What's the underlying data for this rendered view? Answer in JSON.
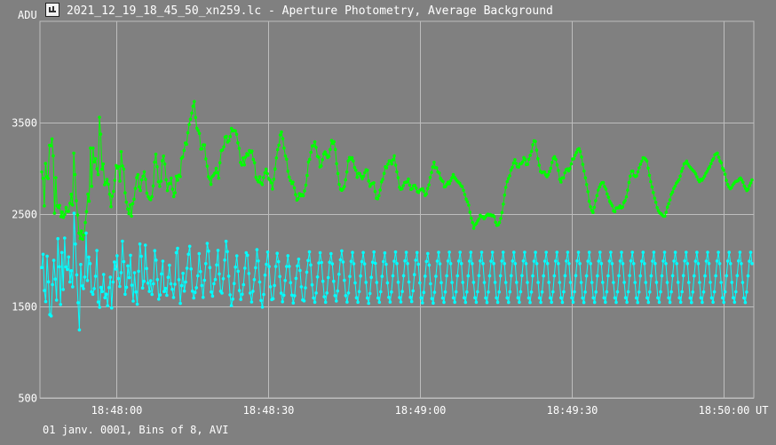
{
  "window": {
    "title": "2021_12_19_18_45_50_xn259.lc - Aperture Photometry, Average Background",
    "icon": "lightcurve-app-icon"
  },
  "footer": {
    "info": "01 janv. 0001, Bins of 8, AVI"
  },
  "colors": {
    "background": "#808080",
    "grid": "#bdbdbd",
    "series1": "#00ff00",
    "series2": "#00ffff",
    "text": "#ffffff"
  },
  "chart_data": {
    "type": "line",
    "title": "",
    "xlabel": "UT",
    "ylabel": "ADU",
    "x_ticks": [
      "18:48:00",
      "18:48:30",
      "18:49:00",
      "18:49:30",
      "18:50:00"
    ],
    "y_ticks": [
      500,
      1500,
      2500,
      3500
    ],
    "ylim": [
      500,
      4600
    ],
    "xlim": [
      "18:47:45",
      "18:50:06"
    ],
    "grid": true,
    "series": [
      {
        "color": "#00ff00",
        "values": [
          2961,
          2890,
          2591,
          3052,
          2909,
          2889,
          3250,
          3245,
          3320,
          3136,
          2510,
          2898,
          2592,
          2571,
          2595,
          2474,
          2525,
          2465,
          2497,
          2573,
          2531,
          2532,
          2619,
          2717,
          2600,
          3165,
          2931,
          2647,
          2491,
          2295,
          2237,
          2317,
          2227,
          2276,
          2409,
          2529,
          2718,
          2641,
          3220,
          2804,
          3219,
          3069,
          3104,
          2994,
          2931,
          3556,
          3371,
          2990,
          3048,
          2821,
          2845,
          2879,
          2825,
          2718,
          2582,
          2695,
          2749,
          2870,
          3030,
          3003,
          3019,
          2860,
          3180,
          3025,
          2992,
          2733,
          2631,
          2558,
          2506,
          2601,
          2479,
          2616,
          2663,
          2780,
          2899,
          2930,
          2798,
          2757,
          2874,
          2914,
          2962,
          2880,
          2730,
          2691,
          2669,
          2658,
          2691,
          2808,
          3066,
          3153,
          3017,
          2854,
          2802,
          2859,
          3081,
          3133,
          3046,
          2876,
          2757,
          2831,
          2833,
          2893,
          2773,
          2692,
          2733,
          2914,
          2870,
          2924,
          2910,
          3108,
          3123,
          3195,
          3275,
          3262,
          3387,
          3477,
          3534,
          3601,
          3676,
          3727,
          3553,
          3436,
          3411,
          3380,
          3209,
          3211,
          3255,
          3254,
          3102,
          3023,
          2909,
          2886,
          2825,
          2910,
          2924,
          2947,
          3000,
          2952,
          2892,
          3061,
          3192,
          3200,
          3233,
          3339,
          3347,
          3286,
          3299,
          3346,
          3435,
          3407,
          3412,
          3407,
          3370,
          3277,
          3217,
          3063,
          3035,
          3112,
          3037,
          3122,
          3158,
          3143,
          3192,
          3173,
          3186,
          3095,
          3061,
          2902,
          2876,
          2853,
          2908,
          2841,
          2823,
          2898,
          2952,
          2991,
          2942,
          2887,
          2871,
          2843,
          2775,
          2881,
          2993,
          3113,
          3203,
          3252,
          3362,
          3396,
          3323,
          3220,
          3135,
          3099,
          2968,
          2904,
          2866,
          2833,
          2850,
          2786,
          2713,
          2654,
          2668,
          2723,
          2700,
          2713,
          2700,
          2754,
          2817,
          2921,
          3068,
          3097,
          3174,
          3243,
          3247,
          3288,
          3228,
          3130,
          3121,
          3015,
          3025,
          3093,
          3156,
          3179,
          3149,
          3117,
          3130,
          3205,
          3302,
          3271,
          3289,
          3205,
          3050,
          2943,
          2826,
          2772,
          2761,
          2775,
          2800,
          2875,
          2960,
          3080,
          3118,
          3100,
          3116,
          3079,
          3008,
          2979,
          2902,
          2945,
          2941,
          2914,
          2886,
          2913,
          2952,
          2983,
          2978,
          2862,
          2803,
          2828,
          2834,
          2842,
          2747,
          2674,
          2669,
          2702,
          2764,
          2853,
          2879,
          2945,
          3017,
          3004,
          3045,
          3080,
          3078,
          3047,
          3092,
          3136,
          3034,
          2962,
          2897,
          2794,
          2771,
          2776,
          2811,
          2845,
          2849,
          2851,
          2883,
          2817,
          2770,
          2778,
          2810,
          2814,
          2784,
          2746,
          2738,
          2762,
          2770,
          2776,
          2750,
          2704,
          2720,
          2779,
          2819,
          2900,
          2954,
          3013,
          3065,
          3007,
          3005,
          2961,
          2948,
          2891,
          2868,
          2855,
          2797,
          2802,
          2827,
          2850,
          2832,
          2865,
          2897,
          2931,
          2901,
          2882,
          2861,
          2849,
          2836,
          2811,
          2800,
          2760,
          2714,
          2664,
          2636,
          2598,
          2522,
          2455,
          2409,
          2347,
          2384,
          2399,
          2427,
          2448,
          2489,
          2475,
          2472,
          2451,
          2470,
          2488,
          2500,
          2488,
          2497,
          2483,
          2488,
          2473,
          2412,
          2379,
          2384,
          2409,
          2454,
          2518,
          2610,
          2709,
          2793,
          2855,
          2887,
          2918,
          2979,
          3011,
          3059,
          3093,
          3053,
          3016,
          3013,
          3047,
          3050,
          3069,
          3117,
          3095,
          3040,
          3043,
          3099,
          3141,
          3183,
          3257,
          3298,
          3293,
          3197,
          3104,
          3033,
          2966,
          2952,
          2958,
          2961,
          2930,
          2908,
          2930,
          2965,
          3001,
          3063,
          3109,
          3126,
          3096,
          3036,
          2975,
          2880,
          2850,
          2895,
          2894,
          2951,
          2986,
          2993,
          2972,
          2998,
          3048,
          3101,
          3103,
          3141,
          3172,
          3204,
          3214,
          3182,
          3123,
          3042,
          2971,
          2896,
          2823,
          2745,
          2641,
          2581,
          2541,
          2519,
          2574,
          2648,
          2703,
          2763,
          2796,
          2827,
          2843,
          2844,
          2801,
          2773,
          2720,
          2684,
          2640,
          2617,
          2593,
          2536,
          2529,
          2567,
          2568,
          2570,
          2591,
          2568,
          2578,
          2626,
          2648,
          2689,
          2762,
          2846,
          2915,
          2968,
          2969,
          2922,
          2910,
          2918,
          2962,
          3004,
          3044,
          3078,
          3114,
          3112,
          3098,
          3079,
          3002,
          2923,
          2855,
          2797,
          2736,
          2674,
          2629,
          2572,
          2538,
          2514,
          2507,
          2491,
          2478,
          2479,
          2520,
          2577,
          2614,
          2656,
          2716,
          2741,
          2780,
          2806,
          2837,
          2856,
          2875,
          2915,
          2969,
          3001,
          3047,
          3058,
          3078,
          3047,
          3024,
          3007,
          2991,
          2975,
          2963,
          2940,
          2908,
          2876,
          2854,
          2879,
          2869,
          2890,
          2916,
          2946,
          2968,
          2996,
          3017,
          3051,
          3086,
          3105,
          3147,
          3156,
          3165,
          3121,
          3079,
          3060,
          3002,
          2979,
          2935,
          2868,
          2824,
          2797,
          2777,
          2789,
          2818,
          2837,
          2855,
          2858,
          2863,
          2883,
          2894,
          2874,
          2847,
          2806,
          2779,
          2757,
          2773,
          2810,
          2840,
          2873
        ]
      },
      {
        "color": "#00ffff",
        "values": [
          1920,
          2064,
          1669,
          1548,
          2043,
          1764,
          1407,
          1393,
          1734,
          1998,
          1794,
          1565,
          2234,
          1928,
          1517,
          2083,
          1681,
          2241,
          1926,
          1898,
          2035,
          1762,
          1885,
          1710,
          2511,
          2176,
          1839,
          1537,
          1241,
          1953,
          1720,
          1689,
          1816,
          2295,
          1778,
          2034,
          1962,
          1656,
          1628,
          1690,
          1825,
          2104,
          1544,
          1487,
          1703,
          1657,
          1844,
          1591,
          1629,
          1504,
          1701,
          1814,
          1480,
          1762,
          1979,
          1903,
          2048,
          1800,
          1714,
          1864,
          2207,
          1983,
          1628,
          1705,
          1938,
          1809,
          2053,
          1727,
          1554,
          1863,
          1654,
          1520,
          1879,
          2176,
          2041,
          1697,
          1770,
          2163,
          1909,
          1750,
          1659,
          1776,
          1627,
          1743,
          2103,
          2000,
          1788,
          1575,
          1621,
          1850,
          1989,
          1658,
          1692,
          1617,
          1813,
          1945,
          1743,
          1683,
          1594,
          1738,
          2082,
          2128,
          1787,
          1529,
          1722,
          1857,
          1663,
          1762,
          1912,
          2064,
          2151,
          1904,
          1662,
          1588,
          1649,
          1700,
          1830,
          2071,
          1875,
          1724,
          1595,
          1781,
          1962,
          2183,
          2098,
          1920,
          1654,
          1608,
          1744,
          1789,
          1948,
          2106,
          1850,
          1661,
          1641,
          1798,
          2001,
          2205,
          2093,
          1826,
          1623,
          1505,
          1576,
          1745,
          1924,
          2047,
          1879,
          1669,
          1572,
          1629,
          1733,
          1913,
          2081,
          2053,
          1855,
          1642,
          1544,
          1661,
          1788,
          1918,
          2114,
          1991,
          1762,
          1561,
          1488,
          1627,
          1836,
          1955,
          2088,
          1930,
          1711,
          1570,
          1579,
          1724,
          1931,
          2074,
          1983,
          1822,
          1640,
          1547,
          1618,
          1778,
          1931,
          2048,
          1932,
          1755,
          1619,
          1534,
          1613,
          1802,
          1937,
          2010,
          1888,
          1710,
          1567,
          1556,
          1699,
          1869,
          1996,
          2090,
          1948,
          1731,
          1589,
          1541,
          1643,
          1817,
          1969,
          2081,
          1975,
          1770,
          1601,
          1541,
          1643,
          1810,
          1977,
          2070,
          1959,
          1770,
          1614,
          1555,
          1664,
          1846,
          2004,
          2101,
          1979,
          1780,
          1614,
          1543,
          1643,
          1823,
          1986,
          2084,
          1961,
          1753,
          1591,
          1541,
          1657,
          1828,
          1983,
          2083,
          1959,
          1758,
          1589,
          1530,
          1637,
          1813,
          1978,
          2089,
          1965,
          1757,
          1588,
          1541,
          1656,
          1824,
          1984,
          2079,
          1955,
          1753,
          1595,
          1543,
          1654,
          1830,
          1988,
          2089,
          1963,
          1759,
          1594,
          1544,
          1658,
          1831,
          1992,
          2085,
          1962,
          1762,
          1596,
          1548,
          1665,
          1842,
          1999,
          2083,
          1955,
          1753,
          1590,
          1535,
          1649,
          1826,
          1985,
          2072,
          1947,
          1744,
          1582,
          1533,
          1650,
          1825,
          1989,
          2085,
          1960,
          1755,
          1588,
          1540,
          1654,
          1830,
          1990,
          2087,
          1962,
          1757,
          1590,
          1541,
          1655,
          1830,
          1990,
          2086,
          1963,
          1758,
          1591,
          1540,
          1654,
          1829,
          1989,
          2085,
          1962,
          1758,
          1591,
          1541,
          1656,
          1832,
          1991,
          2086,
          1962,
          1757,
          1589,
          1539,
          1653,
          1829,
          1988,
          2086,
          1963,
          1758,
          1590,
          1540,
          1654,
          1830,
          1990,
          2086,
          1962,
          1757,
          1590,
          1540,
          1655,
          1831,
          1990,
          2085,
          1962,
          1758,
          1591,
          1541,
          1656,
          1832,
          1991,
          2086,
          1962,
          1757,
          1589,
          1539,
          1653,
          1829,
          1988,
          2085,
          1962,
          1757,
          1590,
          1540,
          1654,
          1829,
          1989,
          2086,
          1963,
          1758,
          1590,
          1541,
          1655,
          1830,
          1990,
          2086,
          1962,
          1757,
          1590,
          1540,
          1655,
          1831,
          1990,
          2086,
          1962,
          1757,
          1590,
          1541,
          1656,
          1832,
          1991,
          2086,
          1962,
          1757,
          1589,
          1539,
          1653,
          1829,
          1988,
          2085,
          1962,
          1757,
          1590,
          1540,
          1654,
          1829,
          1989,
          2086,
          1963,
          1758,
          1590,
          1541,
          1655,
          1830,
          1990,
          2086,
          1962,
          1757,
          1590,
          1540,
          1655,
          1831,
          1990,
          2085,
          1962,
          1758,
          1591,
          1541,
          1656,
          1832,
          1991,
          2086,
          1962,
          1757,
          1589,
          1539,
          1653,
          1829,
          1988,
          2085,
          1962,
          1757,
          1590,
          1540,
          1654,
          1829,
          1989,
          2086,
          1963,
          1758,
          1590,
          1541,
          1655,
          1830,
          1990,
          2086,
          1962,
          1757,
          1590,
          1540,
          1655,
          1831,
          1990,
          2085,
          1962,
          1758,
          1591,
          1541,
          1656,
          1832,
          1991,
          2086,
          1962,
          1757,
          1589,
          1539,
          1653,
          1829,
          1988,
          2085,
          1962,
          1757,
          1590,
          1540,
          1654,
          1829,
          1989,
          2086,
          1963,
          1758,
          1590,
          1541,
          1655,
          1830,
          1990,
          2086,
          1962,
          1757,
          1590,
          1540,
          1655,
          1831,
          1990,
          2085,
          1962,
          1758,
          1591,
          1541,
          1656,
          1832,
          1991,
          2086,
          1962,
          1757,
          1589,
          1539,
          1653,
          1829,
          1988,
          2085,
          1962
        ]
      }
    ]
  }
}
